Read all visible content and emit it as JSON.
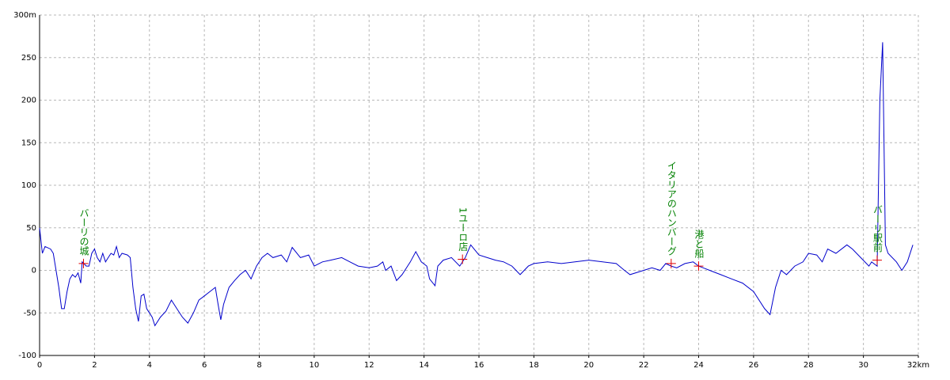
{
  "chart_data": {
    "type": "line",
    "xlim": [
      0,
      32
    ],
    "ylim": [
      -100,
      300
    ],
    "xticks": [
      0,
      2,
      4,
      6,
      8,
      10,
      12,
      14,
      16,
      18,
      20,
      22,
      24,
      26,
      28,
      30,
      {
        "value": 32,
        "label": "32km"
      }
    ],
    "yticks": [
      -100,
      -50,
      0,
      50,
      100,
      150,
      200,
      250,
      {
        "value": 300,
        "label": "300m"
      }
    ],
    "grid": true,
    "x": [
      0,
      0.1,
      0.2,
      0.4,
      0.5,
      0.6,
      0.7,
      0.8,
      0.9,
      1.0,
      1.1,
      1.2,
      1.3,
      1.4,
      1.5,
      1.55,
      1.7,
      1.8,
      1.9,
      2.0,
      2.1,
      2.2,
      2.3,
      2.4,
      2.5,
      2.6,
      2.7,
      2.8,
      2.9,
      3.0,
      3.2,
      3.3,
      3.4,
      3.5,
      3.6,
      3.7,
      3.8,
      3.9,
      4.0,
      4.1,
      4.2,
      4.4,
      4.6,
      4.8,
      5.0,
      5.2,
      5.4,
      5.6,
      5.8,
      6.0,
      6.2,
      6.4,
      6.5,
      6.6,
      6.7,
      6.9,
      7.1,
      7.3,
      7.5,
      7.7,
      7.9,
      8.1,
      8.3,
      8.5,
      8.8,
      9.0,
      9.2,
      9.5,
      9.8,
      10.0,
      10.3,
      10.6,
      11.0,
      11.3,
      11.6,
      12.0,
      12.3,
      12.5,
      12.6,
      12.8,
      13.0,
      13.2,
      13.5,
      13.7,
      13.9,
      14.1,
      14.2,
      14.4,
      14.5,
      14.7,
      15.0,
      15.3,
      15.5,
      15.7,
      16.0,
      16.3,
      16.6,
      16.9,
      17.2,
      17.5,
      17.8,
      18.0,
      18.5,
      19.0,
      19.5,
      20.0,
      20.5,
      21.0,
      21.3,
      21.5,
      22.0,
      22.3,
      22.6,
      22.8,
      23.0,
      23.2,
      23.5,
      23.8,
      24.0,
      24.4,
      24.8,
      25.2,
      25.6,
      26.0,
      26.4,
      26.6,
      26.8,
      27.0,
      27.2,
      27.5,
      27.8,
      28.0,
      28.3,
      28.5,
      28.7,
      29.0,
      29.4,
      29.6,
      29.9,
      30.2,
      30.3,
      30.5,
      30.6,
      30.7,
      30.8,
      30.9,
      31.2,
      31.4,
      31.6,
      31.8
    ],
    "series": [
      {
        "color": "#0000cc",
        "values": [
          50,
          20,
          28,
          25,
          20,
          0,
          -20,
          -45,
          -45,
          -25,
          -10,
          -5,
          -8,
          -3,
          -15,
          10,
          5,
          5,
          20,
          25,
          15,
          10,
          20,
          10,
          15,
          20,
          18,
          28,
          15,
          20,
          18,
          15,
          -20,
          -45,
          -60,
          -30,
          -28,
          -45,
          -50,
          -55,
          -65,
          -55,
          -48,
          -35,
          -45,
          -55,
          -62,
          -50,
          -35,
          -30,
          -25,
          -20,
          -40,
          -58,
          -40,
          -20,
          -12,
          -5,
          0,
          -10,
          5,
          15,
          20,
          15,
          18,
          10,
          27,
          15,
          18,
          5,
          10,
          12,
          15,
          10,
          5,
          3,
          5,
          10,
          0,
          5,
          -12,
          -5,
          10,
          22,
          10,
          5,
          -10,
          -18,
          5,
          12,
          15,
          5,
          15,
          30,
          18,
          15,
          12,
          10,
          5,
          -5,
          5,
          8,
          10,
          8,
          10,
          12,
          10,
          8,
          0,
          -5,
          0,
          3,
          0,
          8,
          5,
          3,
          8,
          10,
          5,
          0,
          -5,
          -10,
          -15,
          -25,
          -45,
          -52,
          -20,
          0,
          -5,
          5,
          10,
          20,
          18,
          10,
          25,
          20,
          30,
          25,
          15,
          5,
          10,
          5,
          200,
          268,
          30,
          20,
          10,
          0,
          10,
          30
        ]
      }
    ],
    "markers": [
      {
        "label": "バーリの城",
        "x": 1.6,
        "y": 8
      },
      {
        "label": "1ユーロ店",
        "x": 15.4,
        "y": 13
      },
      {
        "label": "イタリアのハンバーグ",
        "x": 23.0,
        "y": 8
      },
      {
        "label": "港と船",
        "x": 24.0,
        "y": 5
      },
      {
        "label": "バーリ駅前",
        "x": 30.5,
        "y": 12
      }
    ]
  }
}
